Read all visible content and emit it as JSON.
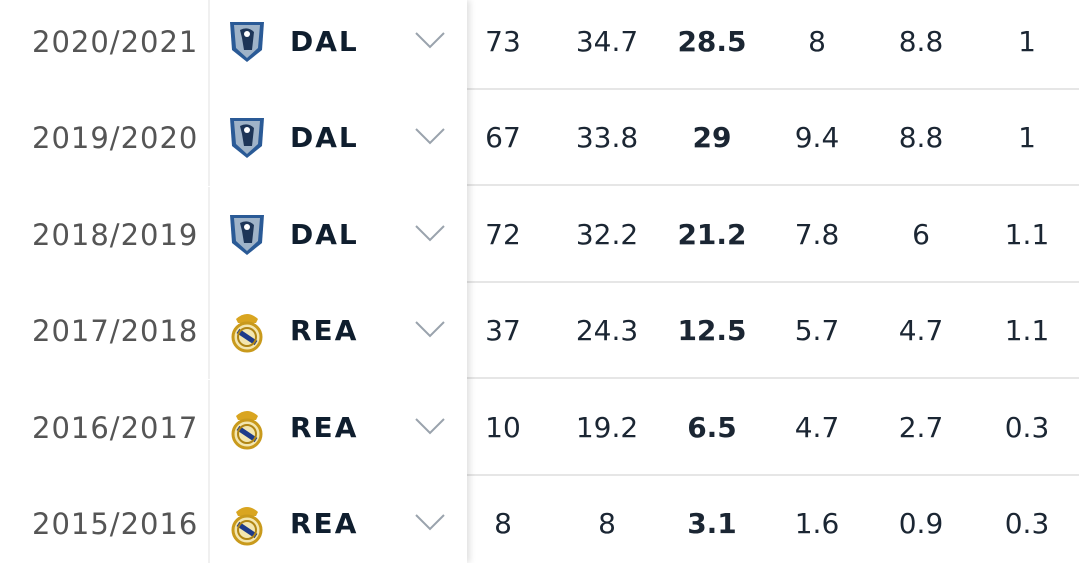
{
  "table": {
    "rows": [
      {
        "season": "2020/2021",
        "team": "DAL",
        "stats": [
          73,
          34.7,
          28.5,
          8,
          8.8,
          1
        ]
      },
      {
        "season": "2019/2020",
        "team": "DAL",
        "stats": [
          67,
          33.8,
          29,
          9.4,
          8.8,
          1
        ]
      },
      {
        "season": "2018/2019",
        "team": "DAL",
        "stats": [
          72,
          32.2,
          21.2,
          7.8,
          6,
          1.1
        ]
      },
      {
        "season": "2017/2018",
        "team": "REA",
        "stats": [
          37,
          24.3,
          12.5,
          5.7,
          4.7,
          1.1
        ]
      },
      {
        "season": "2016/2017",
        "team": "REA",
        "stats": [
          10,
          19.2,
          6.5,
          4.7,
          2.7,
          0.3
        ]
      },
      {
        "season": "2015/2016",
        "team": "REA",
        "stats": [
          8,
          8,
          3.1,
          1.6,
          0.9,
          0.3
        ]
      }
    ]
  }
}
